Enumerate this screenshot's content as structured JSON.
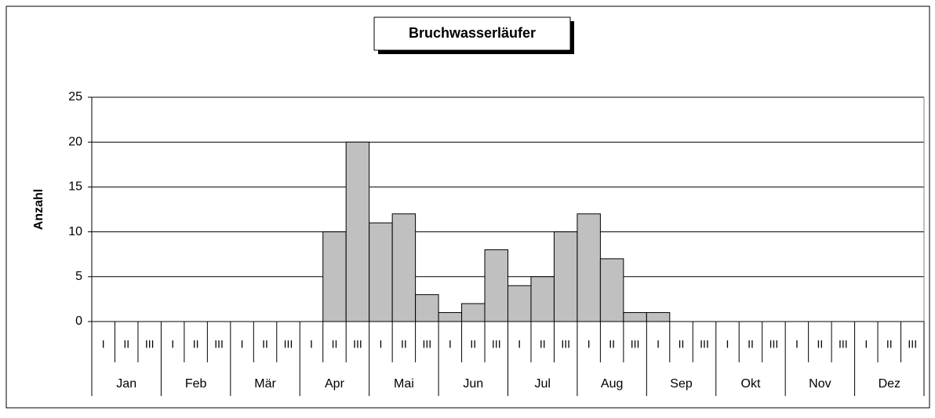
{
  "chart_data": {
    "type": "bar",
    "title": "Bruchwasserläufer",
    "y_label": "Anzahl",
    "categories": [
      "I",
      "II",
      "III",
      "I",
      "II",
      "III",
      "I",
      "II",
      "III",
      "I",
      "II",
      "III",
      "I",
      "II",
      "III",
      "I",
      "II",
      "III",
      "I",
      "II",
      "III",
      "I",
      "II",
      "III",
      "I",
      "II",
      "III",
      "I",
      "II",
      "III",
      "I",
      "II",
      "III",
      "I",
      "II",
      "III"
    ],
    "months": [
      "Jan",
      "Feb",
      "Mär",
      "Apr",
      "Mai",
      "Jun",
      "Jul",
      "Aug",
      "Sep",
      "Okt",
      "Nov",
      "Dez"
    ],
    "values": [
      0,
      0,
      0,
      0,
      0,
      0,
      0,
      0,
      0,
      0,
      10,
      20,
      11,
      12,
      3,
      1,
      2,
      8,
      4,
      5,
      10,
      12,
      7,
      1,
      1,
      0,
      0,
      0,
      0,
      0,
      0,
      0,
      0,
      0,
      0,
      0
    ],
    "color": "#c0c0c0",
    "ylim": [
      0,
      25
    ],
    "yticks": [
      0,
      5,
      10,
      15,
      20,
      25
    ],
    "grid": true
  }
}
